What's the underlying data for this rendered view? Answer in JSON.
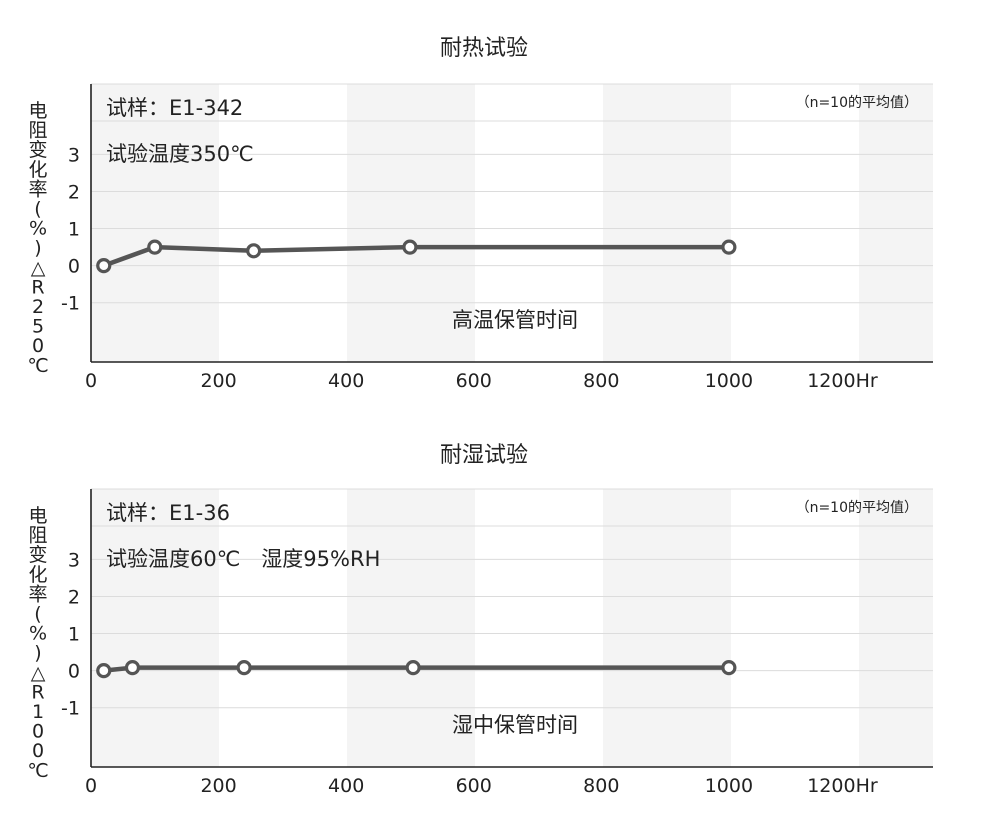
{
  "chart_data": [
    {
      "type": "line",
      "title": "耐热试验",
      "sample_label": "试样：E1-342",
      "condition_label": "试验温度350℃",
      "note": "（n=10的平均值）",
      "xlabel": "高温保管时间",
      "ylabel": "电阻变化率(%)△R250℃",
      "x_tick_labels": [
        "0",
        "200",
        "400",
        "600",
        "800",
        "1000",
        "1200Hr"
      ],
      "y_tick_labels": [
        "3",
        "2",
        "1",
        "0",
        "-1"
      ],
      "xlim": [
        0,
        1320
      ],
      "ylim": [
        -2.6,
        4.9
      ],
      "series": [
        {
          "x": [
            20,
            100,
            255,
            500,
            1000
          ],
          "y": [
            0.0,
            0.5,
            0.4,
            0.5,
            0.5
          ]
        }
      ]
    },
    {
      "type": "line",
      "title": "耐湿试验",
      "sample_label": "试样：E1-36",
      "condition_label": "试验温度60℃　湿度95%RH",
      "note": "（n=10的平均值）",
      "xlabel": "湿中保管时间",
      "ylabel": "电阻变化率(%)△R100℃",
      "x_tick_labels": [
        "0",
        "200",
        "400",
        "600",
        "800",
        "1000",
        "1200Hr"
      ],
      "y_tick_labels": [
        "3",
        "2",
        "1",
        "0",
        "-1"
      ],
      "xlim": [
        0,
        1320
      ],
      "ylim": [
        -2.6,
        4.9
      ],
      "series": [
        {
          "x": [
            20,
            65,
            240,
            505,
            1000
          ],
          "y": [
            0.0,
            0.08,
            0.08,
            0.08,
            0.08
          ]
        }
      ]
    }
  ]
}
